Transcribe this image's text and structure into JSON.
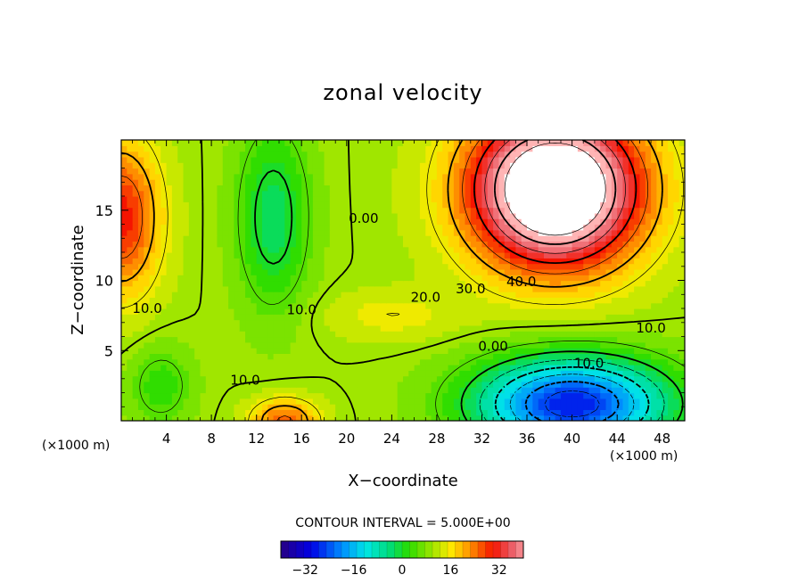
{
  "chart_data": {
    "type": "contour",
    "title": "zonal velocity",
    "xlabel": "X−coordinate",
    "ylabel": "Z−coordinate",
    "x_unit_left": "(×1000 m)",
    "x_unit_right": "(×1000 m)",
    "xlim": [
      0,
      50
    ],
    "ylim": [
      0,
      20
    ],
    "x_ticks": [
      4,
      8,
      12,
      16,
      20,
      24,
      28,
      32,
      36,
      40,
      44,
      48
    ],
    "x_tick_labels": [
      "4",
      "8",
      "12",
      "16",
      "20",
      "24",
      "28",
      "32",
      "36",
      "40",
      "44",
      "48"
    ],
    "y_ticks": [
      5,
      10,
      15
    ],
    "y_tick_labels": [
      "5",
      "10",
      "15"
    ],
    "contour_interval_text": "CONTOUR INTERVAL = 5.000E+00",
    "contour_interval": 5.0,
    "contour_labels": [
      {
        "text": "0.00",
        "x": 21.5,
        "y": 14.4
      },
      {
        "text": "10.0",
        "x": 2.3,
        "y": 8.0
      },
      {
        "text": "10.0",
        "x": 16.0,
        "y": 7.9
      },
      {
        "text": "10.0",
        "x": 11.0,
        "y": 2.9
      },
      {
        "text": "20.0",
        "x": 27.0,
        "y": 8.8
      },
      {
        "text": "30.0",
        "x": 31.0,
        "y": 9.4
      },
      {
        "text": "40.0",
        "x": 35.5,
        "y": 9.9
      },
      {
        "text": "10.0",
        "x": 47.0,
        "y": 6.6
      },
      {
        "text": "0.00",
        "x": 33.0,
        "y": 5.3
      },
      {
        "text": "10.0",
        "x": 41.5,
        "y": 4.1
      }
    ],
    "field_features": [
      {
        "kind": "jet_max",
        "x": 38.5,
        "y": 15.5,
        "value": 45
      },
      {
        "kind": "jet_max",
        "x": 1.5,
        "y": 14.5,
        "value": 25
      },
      {
        "kind": "min",
        "x": 40.0,
        "y": 1.5,
        "value": -27
      },
      {
        "kind": "min",
        "x": 13.5,
        "y": 15.0,
        "value": 0
      },
      {
        "kind": "max",
        "x": 14.5,
        "y": 0.5,
        "value": 25
      }
    ],
    "colorbar": {
      "range": [
        -40,
        40
      ],
      "tick_values": [
        -32,
        -16,
        0,
        16,
        32
      ],
      "tick_labels": [
        "−32",
        "−16",
        "0",
        "16",
        "32"
      ]
    }
  }
}
